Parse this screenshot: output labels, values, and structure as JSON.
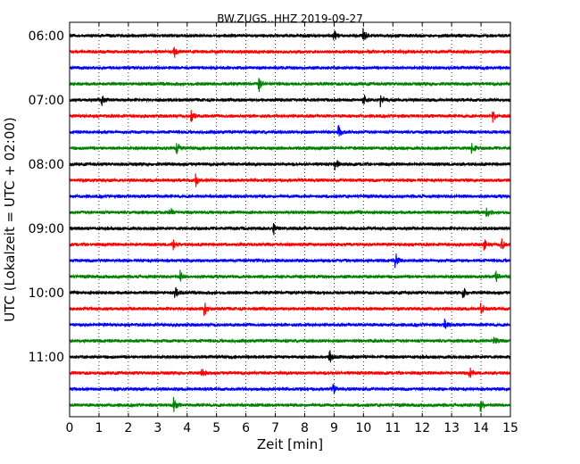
{
  "chart_data": {
    "type": "line",
    "title": "BW.ZUGS..HHZ 2019-09-27",
    "xlabel": "Zeit  [min]",
    "ylabel": "UTC (Lokalzeit = UTC + 02:00)",
    "xlim": [
      0,
      15
    ],
    "x_ticks": [
      "0",
      "1",
      "2",
      "3",
      "4",
      "5",
      "6",
      "7",
      "8",
      "9",
      "10",
      "11",
      "12",
      "13",
      "14",
      "15"
    ],
    "y_tick_labels": [
      "06:00",
      "07:00",
      "08:00",
      "09:00",
      "10:00",
      "11:00"
    ],
    "grid": "vertical dotted at each minute",
    "trace_colors": [
      "#000000",
      "#ff0000",
      "#0000ff",
      "#008000"
    ],
    "rows": [
      {
        "start": "06:00",
        "color": "#000000",
        "events_min": [
          9.0,
          10.0
        ]
      },
      {
        "start": "06:15",
        "color": "#ff0000",
        "events_min": [
          3.55
        ]
      },
      {
        "start": "06:30",
        "color": "#0000ff",
        "events_min": []
      },
      {
        "start": "06:45",
        "color": "#008000",
        "events_min": [
          6.45
        ]
      },
      {
        "start": "07:00",
        "color": "#000000",
        "events_min": [
          1.1,
          10.0,
          10.6
        ]
      },
      {
        "start": "07:15",
        "color": "#ff0000",
        "events_min": [
          4.15,
          14.4
        ]
      },
      {
        "start": "07:30",
        "color": "#0000ff",
        "events_min": [
          9.15
        ]
      },
      {
        "start": "07:45",
        "color": "#008000",
        "events_min": [
          3.65,
          13.7
        ]
      },
      {
        "start": "08:00",
        "color": "#000000",
        "events_min": [
          9.05
        ]
      },
      {
        "start": "08:15",
        "color": "#ff0000",
        "events_min": [
          4.3
        ]
      },
      {
        "start": "08:30",
        "color": "#0000ff",
        "events_min": []
      },
      {
        "start": "08:45",
        "color": "#008000",
        "events_min": [
          3.4,
          14.2
        ]
      },
      {
        "start": "09:00",
        "color": "#000000",
        "events_min": [
          6.95
        ]
      },
      {
        "start": "09:15",
        "color": "#ff0000",
        "events_min": [
          3.5,
          14.1,
          14.7
        ]
      },
      {
        "start": "09:30",
        "color": "#0000ff",
        "events_min": [
          11.1
        ]
      },
      {
        "start": "09:45",
        "color": "#008000",
        "events_min": [
          3.75,
          14.5
        ]
      },
      {
        "start": "10:00",
        "color": "#000000",
        "events_min": [
          3.6,
          13.4
        ]
      },
      {
        "start": "10:15",
        "color": "#ff0000",
        "events_min": [
          4.6,
          14.0
        ]
      },
      {
        "start": "10:30",
        "color": "#0000ff",
        "events_min": [
          12.75
        ]
      },
      {
        "start": "10:45",
        "color": "#008000",
        "events_min": [
          14.45
        ]
      },
      {
        "start": "11:00",
        "color": "#000000",
        "events_min": [
          8.85
        ]
      },
      {
        "start": "11:15",
        "color": "#ff0000",
        "events_min": [
          4.5,
          13.6
        ]
      },
      {
        "start": "11:30",
        "color": "#0000ff",
        "events_min": [
          8.95
        ]
      },
      {
        "start": "11:45",
        "color": "#008000",
        "events_min": [
          3.55,
          14.0
        ]
      }
    ]
  }
}
